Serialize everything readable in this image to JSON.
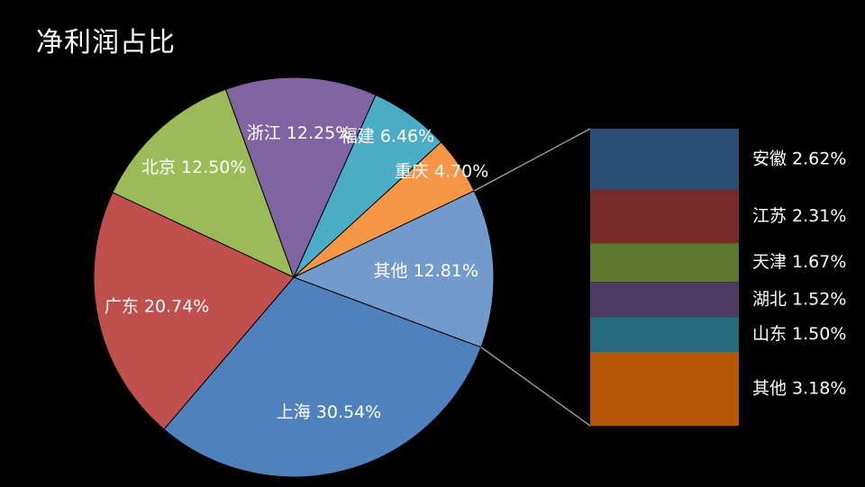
{
  "chart_data": {
    "type": "pie",
    "title": "净利润占比",
    "slices": [
      {
        "label": "上海",
        "value": 30.54,
        "display": "上海 30.54%",
        "color": "#4f81bd"
      },
      {
        "label": "广东",
        "value": 20.74,
        "display": "广东 20.74%",
        "color": "#c0504d"
      },
      {
        "label": "北京",
        "value": 12.5,
        "display": "北京 12.50%",
        "color": "#9bbb59"
      },
      {
        "label": "浙江",
        "value": 12.25,
        "display": "浙江 12.25%",
        "color": "#8064a2"
      },
      {
        "label": "福建",
        "value": 6.46,
        "display": "福建 6.46%",
        "color": "#4bacc6"
      },
      {
        "label": "重庆",
        "value": 4.7,
        "display": "重庆 4.70%",
        "color": "#f79646"
      },
      {
        "label": "其他",
        "value": 12.81,
        "display": "其他 12.81%",
        "color": "#729aca"
      }
    ],
    "breakdown": {
      "of": "其他",
      "items": [
        {
          "label": "安徽",
          "value": 2.62,
          "display": "安徽 2.62%",
          "color": "#2c4d75"
        },
        {
          "label": "江苏",
          "value": 2.31,
          "display": "江苏 2.31%",
          "color": "#772c2a"
        },
        {
          "label": "天津",
          "value": 1.67,
          "display": "天津 1.67%",
          "color": "#5f7530"
        },
        {
          "label": "湖北",
          "value": 1.52,
          "display": "湖北 1.52%",
          "color": "#4d3b62"
        },
        {
          "label": "山东",
          "value": 1.5,
          "display": "山东 1.50%",
          "color": "#276a7c"
        },
        {
          "label": "其他",
          "value": 3.18,
          "display": "其他 3.18%",
          "color": "#b65708"
        }
      ]
    }
  }
}
